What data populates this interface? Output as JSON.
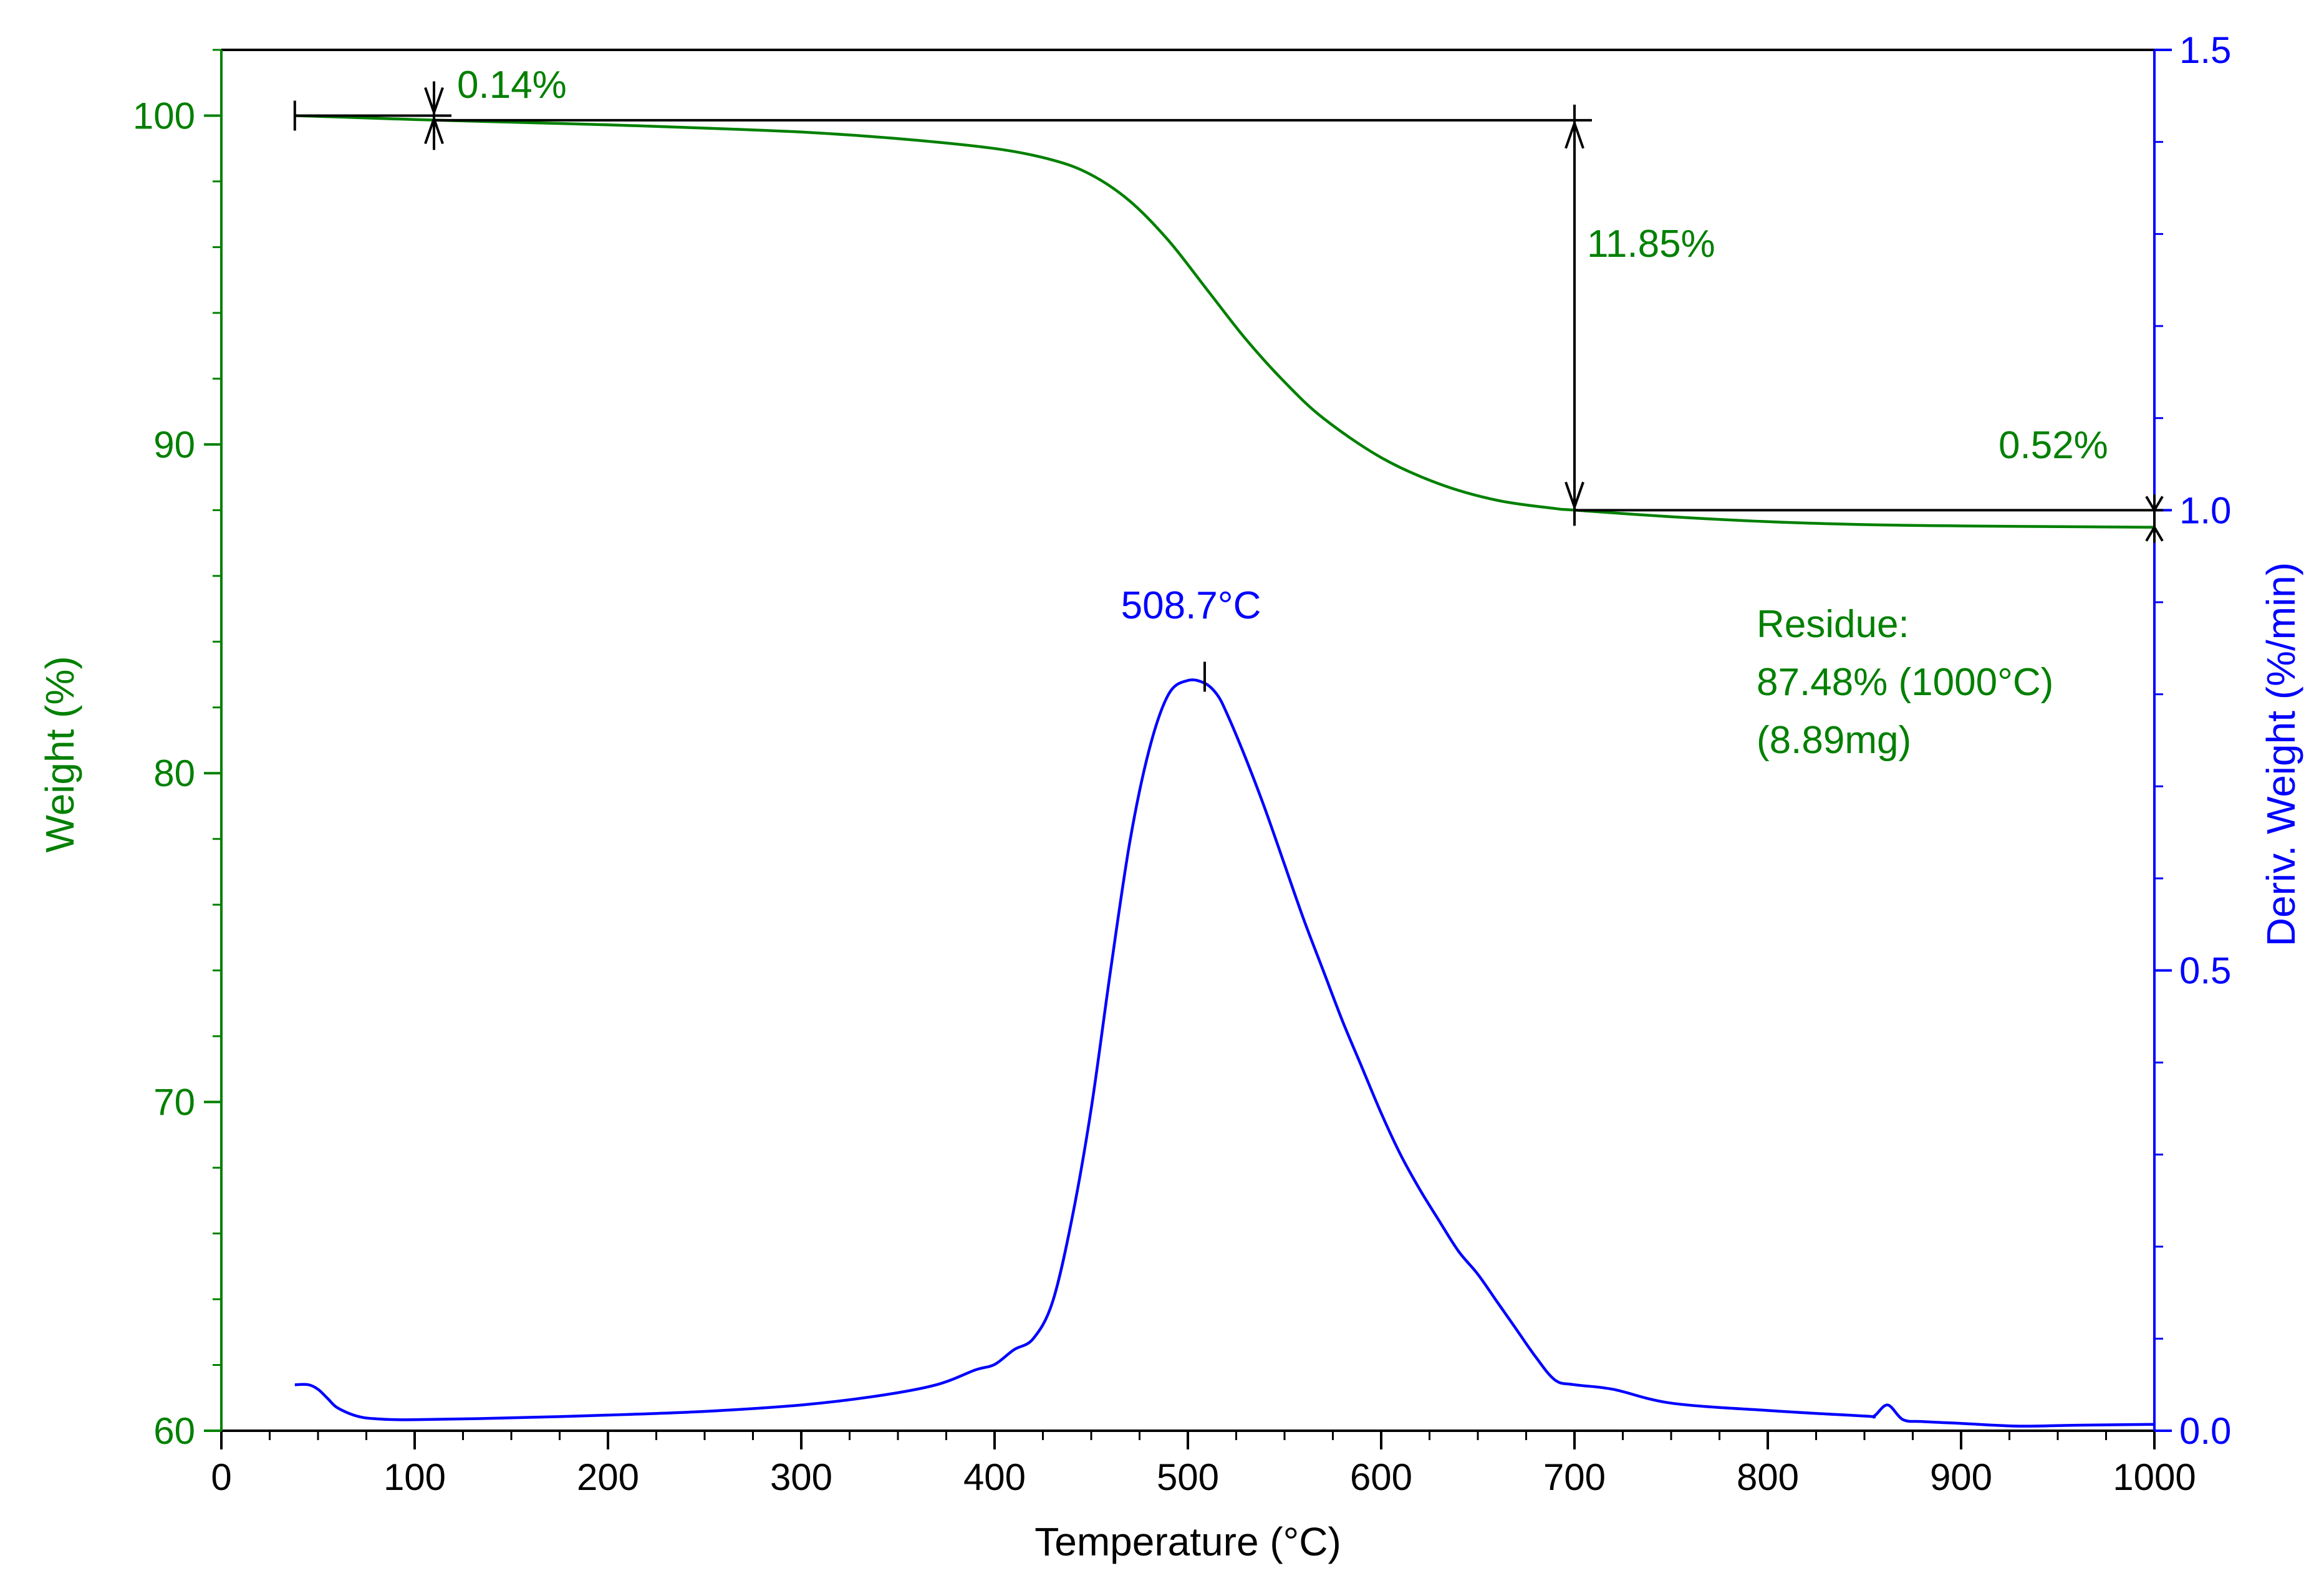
{
  "chart_data": {
    "type": "line",
    "title": "",
    "xlabel": "Temperature (°C)",
    "ylabel": "Weight (%)",
    "y2label": "Deriv. Weight (%/min)",
    "xlim": [
      0,
      1000
    ],
    "ylim": [
      60,
      102
    ],
    "y2lim": [
      0,
      1.5
    ],
    "grid": false,
    "colors": {
      "weight": "#008000",
      "deriv": "#0000ff",
      "annotation": "#000000"
    },
    "x_ticks": [
      0,
      100,
      200,
      300,
      400,
      500,
      600,
      700,
      800,
      900,
      1000
    ],
    "x_tick_labels": [
      "0",
      "100",
      "200",
      "300",
      "400",
      "500",
      "600",
      "700",
      "800",
      "900",
      "1000"
    ],
    "y_ticks": [
      60,
      70,
      80,
      90,
      100
    ],
    "y_tick_labels": [
      "60",
      "70",
      "80",
      "90",
      "100"
    ],
    "y2_ticks": [
      0,
      0.5,
      1.0,
      1.5
    ],
    "y2_tick_labels": [
      "0.0",
      "0.5",
      "1.0",
      "1.5"
    ],
    "series": [
      {
        "name": "Weight",
        "axis": "left",
        "x": [
          38,
          60,
          100,
          150,
          200,
          250,
          300,
          350,
          400,
          430,
          450,
          470,
          490,
          510,
          530,
          550,
          570,
          600,
          630,
          660,
          690,
          700,
          750,
          800,
          850,
          900,
          950,
          1000
        ],
        "y": [
          100.0,
          99.96,
          99.88,
          99.8,
          99.72,
          99.62,
          99.5,
          99.3,
          99.0,
          98.65,
          98.2,
          97.4,
          96.2,
          94.7,
          93.2,
          91.9,
          90.8,
          89.6,
          88.8,
          88.3,
          88.05,
          88.0,
          87.8,
          87.65,
          87.56,
          87.52,
          87.5,
          87.48
        ]
      },
      {
        "name": "Deriv. Weight",
        "axis": "right",
        "x": [
          38,
          45,
          50,
          55,
          60,
          70,
          80,
          100,
          150,
          200,
          250,
          300,
          340,
          370,
          390,
          400,
          410,
          420,
          430,
          440,
          450,
          460,
          470,
          480,
          490,
          500,
          508.7,
          515,
          520,
          530,
          540,
          550,
          560,
          570,
          580,
          590,
          600,
          610,
          620,
          630,
          640,
          650,
          660,
          670,
          680,
          690,
          700,
          720,
          750,
          800,
          850,
          855,
          862,
          870,
          880,
          900,
          930,
          960,
          1000
        ],
        "y": [
          0.05,
          0.05,
          0.045,
          0.035,
          0.025,
          0.016,
          0.013,
          0.012,
          0.014,
          0.017,
          0.021,
          0.028,
          0.038,
          0.05,
          0.066,
          0.072,
          0.088,
          0.1,
          0.14,
          0.23,
          0.35,
          0.5,
          0.64,
          0.74,
          0.8,
          0.815,
          0.812,
          0.8,
          0.78,
          0.73,
          0.675,
          0.615,
          0.555,
          0.5,
          0.445,
          0.395,
          0.345,
          0.3,
          0.262,
          0.228,
          0.195,
          0.17,
          0.14,
          0.11,
          0.08,
          0.055,
          0.05,
          0.045,
          0.03,
          0.022,
          0.016,
          0.016,
          0.028,
          0.012,
          0.01,
          0.008,
          0.005,
          0.006,
          0.007
        ]
      }
    ],
    "annotations": {
      "step1_label": "0.14%",
      "step1_range": [
        38,
        110
      ],
      "step2_label": "11.85%",
      "step2_x": 700,
      "step2_y_range": [
        88.0,
        99.86
      ],
      "step3_label": "0.52%",
      "step3_x": 1000,
      "step3_y_range": [
        87.48,
        88.0
      ],
      "peak_label": "508.7°C",
      "peak_x": 508.7,
      "peak_y2": 0.815,
      "residue_line1": "Residue:",
      "residue_line2": "87.48% (1000°C)",
      "residue_line3": "(8.89mg)"
    }
  }
}
